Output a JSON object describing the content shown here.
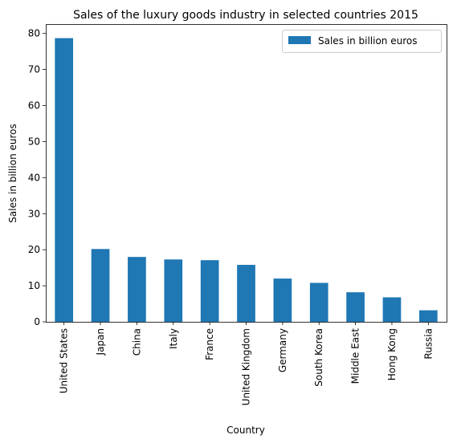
{
  "chart_data": {
    "type": "bar",
    "title": "Sales of the luxury goods industry in selected countries 2015",
    "xlabel": "Country",
    "ylabel": "Sales in billion euros",
    "categories": [
      "United States",
      "Japan",
      "China",
      "Italy",
      "France",
      "United Kingdom",
      "Germany",
      "South Korea",
      "Middle East",
      "Hong Kong",
      "Russia"
    ],
    "series": [
      {
        "name": "Sales in billion euros",
        "values": [
          78.7,
          20.2,
          18,
          17.3,
          17.1,
          15.8,
          12,
          10.8,
          8.2,
          6.8,
          3.2
        ],
        "color": "#1f77b4"
      }
    ],
    "ylim": [
      0,
      82.6
    ],
    "yticks": [
      0,
      10,
      20,
      30,
      40,
      50,
      60,
      70,
      80
    ],
    "legend_position": "top-right",
    "grid": false
  }
}
